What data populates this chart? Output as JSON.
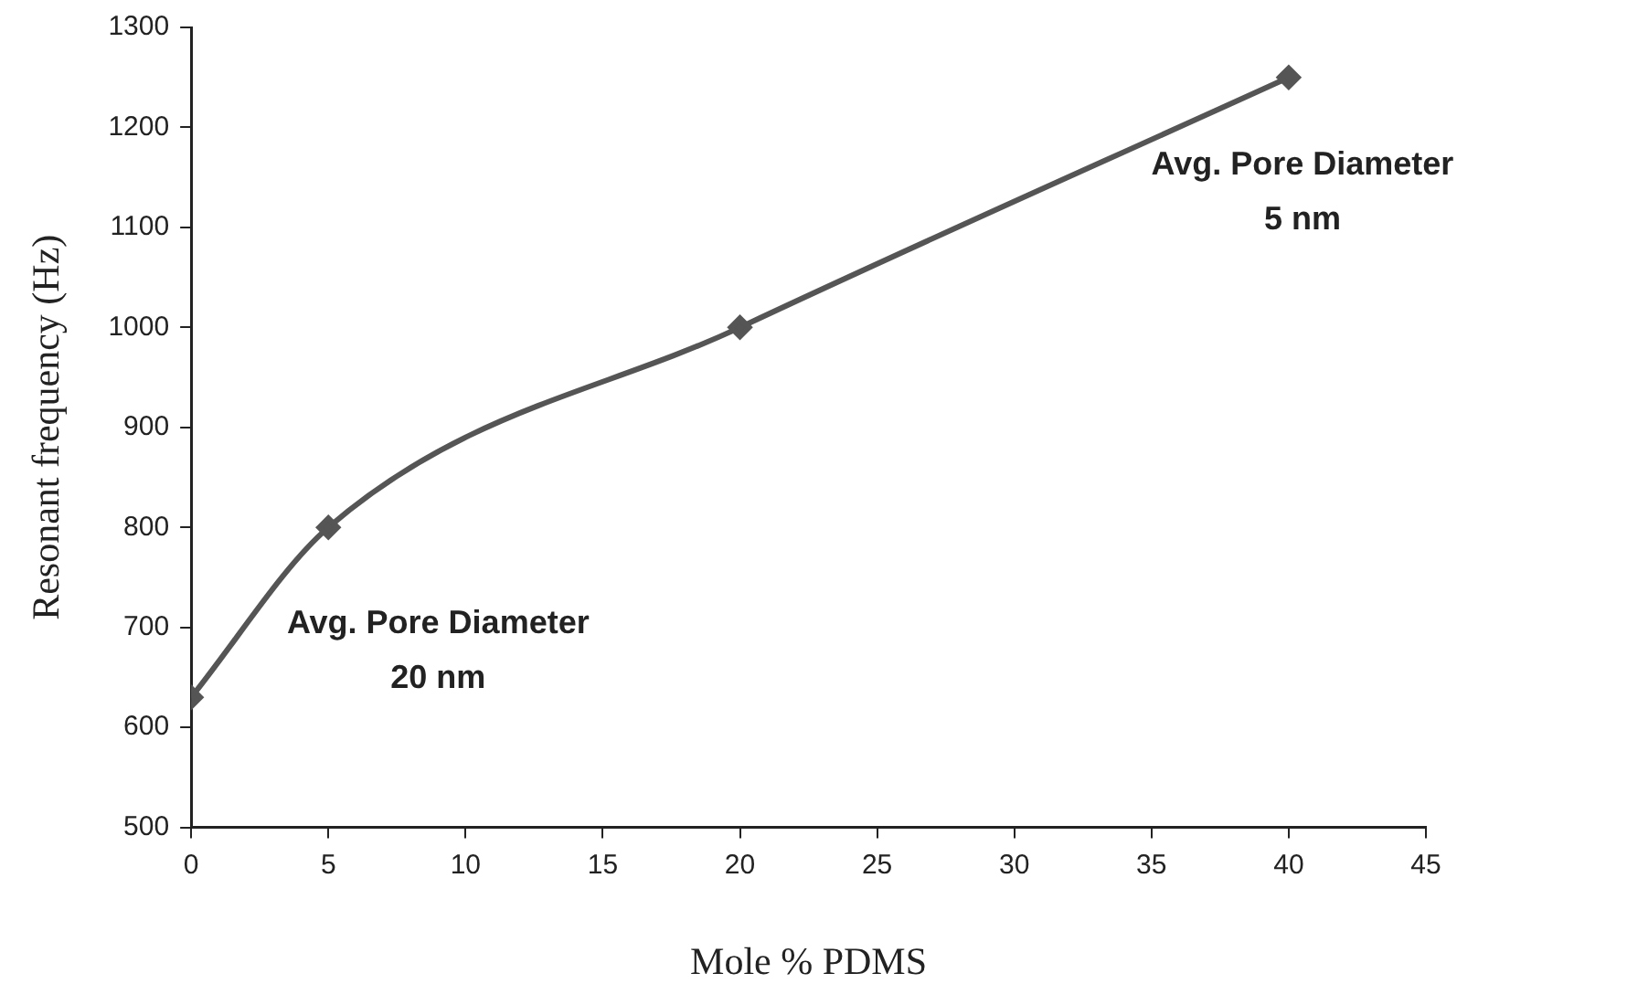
{
  "chart_data": {
    "type": "line",
    "xlabel": "Mole % PDMS",
    "ylabel": "Resonant frequency (Hz)",
    "x": [
      0,
      5,
      20,
      40
    ],
    "series": [
      {
        "color": "#555555",
        "values": [
          630,
          800,
          1000,
          1250
        ]
      }
    ],
    "xlim": [
      0,
      45
    ],
    "xticks": [
      0,
      5,
      10,
      15,
      20,
      25,
      30,
      35,
      40,
      45
    ],
    "ylim": [
      500,
      1300
    ],
    "yticks": [
      500,
      600,
      700,
      800,
      900,
      1000,
      1100,
      1200,
      1300
    ],
    "grid": false,
    "legend": false,
    "marker": "diamond",
    "line_style": "solid",
    "annotations": [
      "Avg. Pore Diameter\n20 nm",
      "Avg. Pore Diameter\n5 nm"
    ]
  }
}
